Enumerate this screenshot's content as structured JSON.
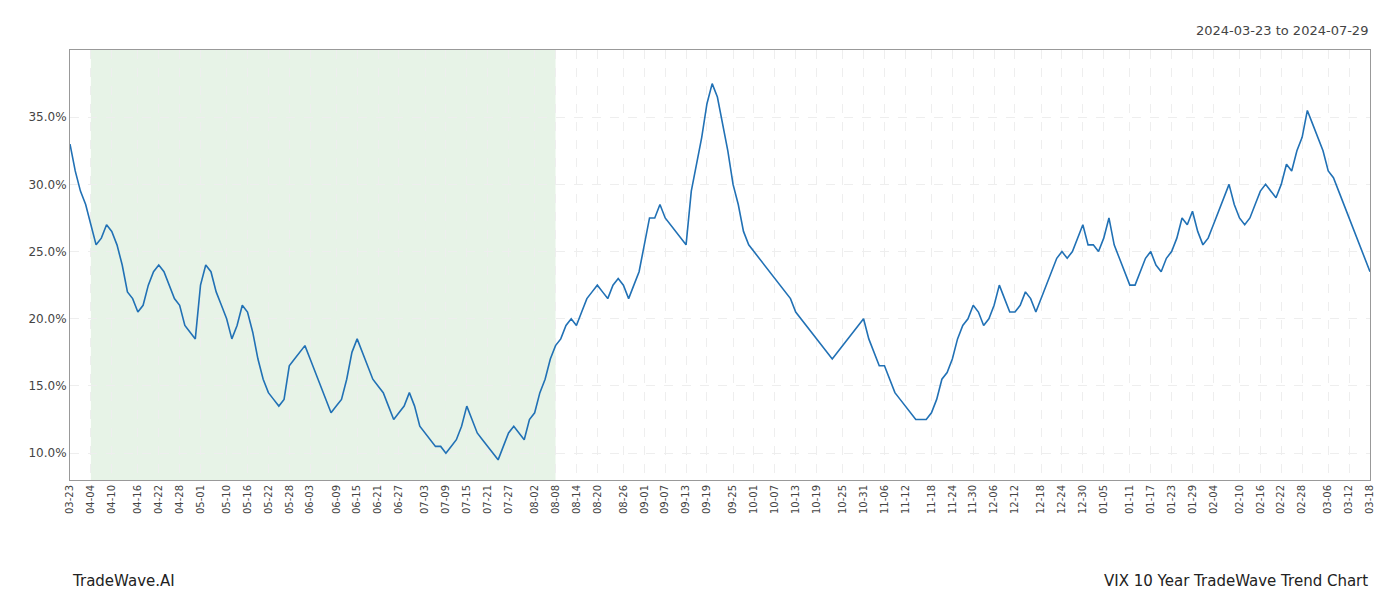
{
  "chart_data": {
    "type": "line",
    "title": "VIX 10 Year TradeWave Trend Chart",
    "subtitle": "2024-03-23 to 2024-07-29",
    "annotations": [
      "TradeWave.AI"
    ],
    "color": "#2171b5",
    "grid": true,
    "highlight": {
      "start": "04-04",
      "end": "08-08",
      "color": "#d4ead4"
    },
    "ylim": [
      8.0,
      40.0
    ],
    "yticks": [
      {
        "value": 10.0,
        "label": "10.0%"
      },
      {
        "value": 15.0,
        "label": "15.0%"
      },
      {
        "value": 20.0,
        "label": "20.0%"
      },
      {
        "value": 25.0,
        "label": "25.0%"
      },
      {
        "value": 30.0,
        "label": "30.0%"
      },
      {
        "value": 35.0,
        "label": "35.0%"
      }
    ],
    "categories": [
      "03-23",
      null,
      null,
      null,
      "04-04",
      null,
      null,
      null,
      "04-10",
      null,
      null,
      null,
      null,
      "04-16",
      null,
      null,
      null,
      "04-22",
      null,
      null,
      null,
      "04-28",
      null,
      null,
      null,
      "05-01",
      null,
      null,
      null,
      null,
      "05-10",
      null,
      null,
      null,
      "05-16",
      null,
      null,
      null,
      "05-22",
      null,
      null,
      null,
      "05-28",
      null,
      null,
      null,
      "06-03",
      null,
      null,
      null,
      null,
      "06-09",
      null,
      null,
      null,
      "06-15",
      null,
      null,
      null,
      "06-21",
      null,
      null,
      null,
      "06-27",
      null,
      null,
      null,
      null,
      "07-03",
      null,
      null,
      null,
      "07-09",
      null,
      null,
      null,
      "07-15",
      null,
      null,
      null,
      "07-21",
      null,
      null,
      null,
      "07-27",
      null,
      null,
      null,
      null,
      "08-02",
      null,
      null,
      null,
      "08-08",
      null,
      null,
      null,
      "08-14",
      null,
      null,
      null,
      "08-20",
      null,
      null,
      null,
      null,
      "08-26",
      null,
      null,
      null,
      "09-01",
      null,
      null,
      null,
      "09-07",
      null,
      null,
      null,
      "09-13",
      null,
      null,
      null,
      "09-19",
      null,
      null,
      null,
      null,
      "09-25",
      null,
      null,
      null,
      "10-01",
      null,
      null,
      null,
      "10-07",
      null,
      null,
      null,
      "10-13",
      null,
      null,
      null,
      "10-19",
      null,
      null,
      null,
      null,
      "10-25",
      null,
      null,
      null,
      "10-31",
      null,
      null,
      null,
      "11-06",
      null,
      null,
      null,
      "11-12",
      null,
      null,
      null,
      null,
      "11-18",
      null,
      null,
      null,
      "11-24",
      null,
      null,
      null,
      "11-30",
      null,
      null,
      null,
      "12-06",
      null,
      null,
      null,
      "12-12",
      null,
      null,
      null,
      null,
      "12-18",
      null,
      null,
      null,
      "12-24",
      null,
      null,
      null,
      "12-30",
      null,
      null,
      null,
      "01-05",
      null,
      null,
      null,
      null,
      "01-11",
      null,
      null,
      null,
      "01-17",
      null,
      null,
      null,
      "01-23",
      null,
      null,
      null,
      "01-29",
      null,
      null,
      null,
      "02-04",
      null,
      null,
      null,
      null,
      "02-10",
      null,
      null,
      null,
      "02-16",
      null,
      null,
      null,
      "02-22",
      null,
      null,
      null,
      "02-28",
      null,
      null,
      null,
      null,
      "03-06",
      null,
      null,
      null,
      "03-12",
      null,
      null,
      null,
      "03-18"
    ],
    "values": [
      33.0,
      31.0,
      29.5,
      28.5,
      27.0,
      25.5,
      26.0,
      27.0,
      26.5,
      25.5,
      24.0,
      22.0,
      21.5,
      20.5,
      21.0,
      22.5,
      23.5,
      24.0,
      23.5,
      22.5,
      21.5,
      21.0,
      19.5,
      19.0,
      18.5,
      22.5,
      24.0,
      23.5,
      22.0,
      21.0,
      20.0,
      18.5,
      19.5,
      21.0,
      20.5,
      19.0,
      17.0,
      15.5,
      14.5,
      14.0,
      13.5,
      14.0,
      16.5,
      17.0,
      17.5,
      18.0,
      17.0,
      16.0,
      15.0,
      14.0,
      13.0,
      13.5,
      14.0,
      15.5,
      17.5,
      18.5,
      17.5,
      16.5,
      15.5,
      15.0,
      14.5,
      13.5,
      12.5,
      13.0,
      13.5,
      14.5,
      13.5,
      12.0,
      11.5,
      11.0,
      10.5,
      10.5,
      10.0,
      10.5,
      11.0,
      12.0,
      13.5,
      12.5,
      11.5,
      11.0,
      10.5,
      10.0,
      9.5,
      10.5,
      11.5,
      12.0,
      11.5,
      11.0,
      12.5,
      13.0,
      14.5,
      15.5,
      17.0,
      18.0,
      18.5,
      19.5,
      20.0,
      19.5,
      20.5,
      21.5,
      22.0,
      22.5,
      22.0,
      21.5,
      22.5,
      23.0,
      22.5,
      21.5,
      22.5,
      23.5,
      25.5,
      27.5,
      27.5,
      28.5,
      27.5,
      27.0,
      26.5,
      26.0,
      25.5,
      29.5,
      31.5,
      33.5,
      36.0,
      37.5,
      36.5,
      34.5,
      32.5,
      30.0,
      28.5,
      26.5,
      25.5,
      25.0,
      24.5,
      24.0,
      23.5,
      23.0,
      22.5,
      22.0,
      21.5,
      20.5,
      20.0,
      19.5,
      19.0,
      18.5,
      18.0,
      17.5,
      17.0,
      17.5,
      18.0,
      18.5,
      19.0,
      19.5,
      20.0,
      18.5,
      17.5,
      16.5,
      16.5,
      15.5,
      14.5,
      14.0,
      13.5,
      13.0,
      12.5,
      12.5,
      12.5,
      13.0,
      14.0,
      15.5,
      16.0,
      17.0,
      18.5,
      19.5,
      20.0,
      21.0,
      20.5,
      19.5,
      20.0,
      21.0,
      22.5,
      21.5,
      20.5,
      20.5,
      21.0,
      22.0,
      21.5,
      20.5,
      21.5,
      22.5,
      23.5,
      24.5,
      25.0,
      24.5,
      25.0,
      26.0,
      27.0,
      25.5,
      25.5,
      25.0,
      26.0,
      27.5,
      25.5,
      24.5,
      23.5,
      22.5,
      22.5,
      23.5,
      24.5,
      25.0,
      24.0,
      23.5,
      24.5,
      25.0,
      26.0,
      27.5,
      27.0,
      28.0,
      26.5,
      25.5,
      26.0,
      27.0,
      28.0,
      29.0,
      30.0,
      28.5,
      27.5,
      27.0,
      27.5,
      28.5,
      29.5,
      30.0,
      29.5,
      29.0,
      30.0,
      31.5,
      31.0,
      32.5,
      33.5,
      35.5,
      34.5,
      33.5,
      32.5,
      31.0,
      30.5,
      29.5,
      28.5,
      27.5,
      26.5,
      25.5,
      24.5,
      23.5
    ]
  }
}
